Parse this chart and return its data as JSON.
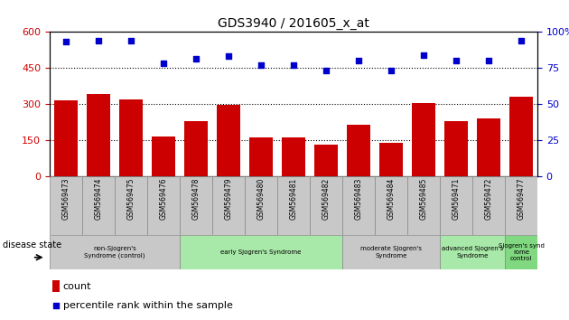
{
  "title": "GDS3940 / 201605_x_at",
  "samples": [
    "GSM569473",
    "GSM569474",
    "GSM569475",
    "GSM569476",
    "GSM569478",
    "GSM569479",
    "GSM569480",
    "GSM569481",
    "GSM569482",
    "GSM569483",
    "GSM569484",
    "GSM569485",
    "GSM569471",
    "GSM569472",
    "GSM569477"
  ],
  "counts": [
    315,
    340,
    320,
    165,
    230,
    295,
    160,
    160,
    130,
    215,
    140,
    305,
    230,
    240,
    330
  ],
  "percentiles": [
    93,
    94,
    94,
    78,
    81,
    83,
    77,
    77,
    73,
    80,
    73,
    84,
    80,
    80,
    94
  ],
  "ylim_left": [
    0,
    600
  ],
  "ylim_right": [
    0,
    100
  ],
  "yticks_left": [
    0,
    150,
    300,
    450,
    600
  ],
  "yticks_right": [
    0,
    25,
    50,
    75,
    100
  ],
  "bar_color": "#cc0000",
  "dot_color": "#0000cc",
  "groups": [
    {
      "label": "non-Sjogren's\nSyndrome (control)",
      "start": 0,
      "end": 4,
      "color": "#c8c8c8"
    },
    {
      "label": "early Sjogren's Syndrome",
      "start": 4,
      "end": 9,
      "color": "#a8e8a8"
    },
    {
      "label": "moderate Sjogren's\nSyndrome",
      "start": 9,
      "end": 12,
      "color": "#c8c8c8"
    },
    {
      "label": "advanced Sjogren's\nSyndrome",
      "start": 12,
      "end": 14,
      "color": "#a8e8a8"
    },
    {
      "label": "Sjogren's synd\nrome\ncontrol",
      "start": 14,
      "end": 15,
      "color": "#80d880"
    }
  ],
  "disease_state_label": "disease state",
  "legend_count_label": "count",
  "legend_percentile_label": "percentile rank within the sample",
  "grid_lines": [
    150,
    300,
    450
  ],
  "background_color": "#ffffff",
  "tick_area_color": "#c8c8c8"
}
